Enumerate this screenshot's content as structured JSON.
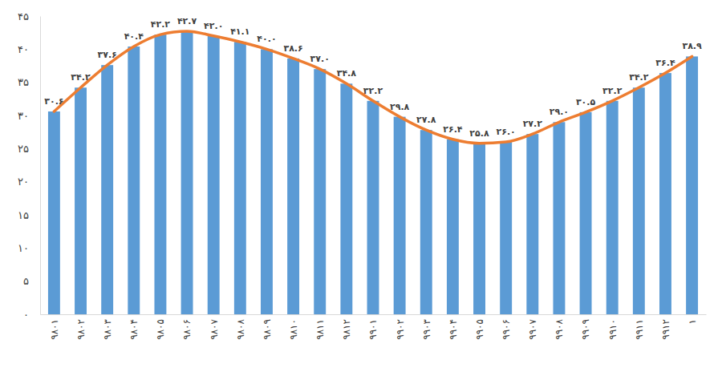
{
  "chart_data": {
    "type": "bar",
    "categories": [
      "۹۸۰۱",
      "۹۸۰۲",
      "۹۸۰۳",
      "۹۸۰۴",
      "۹۸۰۵",
      "۹۸۰۶",
      "۹۸۰۷",
      "۹۸۰۸",
      "۹۸۰۹",
      "۹۸۱۰",
      "۹۸۱۱",
      "۹۸۱۲",
      "۹۹۰۱",
      "۹۹۰۲",
      "۹۹۰۳",
      "۹۹۰۴",
      "۹۹۰۵",
      "۹۹۰۶",
      "۹۹۰۷",
      "۹۹۰۸",
      "۹۹۰۹",
      "۹۹۱۰",
      "۹۹۱۱",
      "۹۹۱۲",
      "۱"
    ],
    "series": [
      {
        "type": "bar",
        "color": "#5b9bd5",
        "values": [
          30.6,
          34.2,
          37.6,
          40.4,
          42.2,
          42.7,
          42.0,
          41.1,
          40.0,
          38.6,
          37.0,
          34.8,
          32.2,
          29.8,
          27.8,
          26.4,
          25.8,
          26.0,
          27.2,
          29.0,
          30.5,
          32.2,
          34.2,
          36.4,
          38.9
        ]
      },
      {
        "type": "line",
        "color": "#ed7d31",
        "values": [
          30.6,
          34.2,
          37.6,
          40.4,
          42.2,
          42.7,
          42.0,
          41.1,
          40.0,
          38.6,
          37.0,
          34.8,
          32.2,
          29.8,
          27.8,
          26.4,
          25.8,
          26.0,
          27.2,
          29.0,
          30.5,
          32.2,
          34.2,
          36.4,
          38.9
        ],
        "value_labels": [
          "۳۰.۶",
          "۳۴.۲",
          "۳۷.۶",
          "۴۰.۴",
          "۴۲.۲",
          "۴۲.۷",
          "۴۲.۰",
          "۴۱.۱",
          "۴۰.۰",
          "۳۸.۶",
          "۳۷.۰",
          "۳۴.۸",
          "۳۲.۲",
          "۲۹.۸",
          "۲۷.۸",
          "۲۶.۴",
          "۲۵.۸",
          "۲۶.۰",
          "۲۷.۲",
          "۲۹.۰",
          "۳۰.۵",
          "۳۲.۲",
          "۳۴.۲",
          "۳۶.۴",
          "۳۸.۹"
        ]
      }
    ],
    "ylim": [
      0,
      45
    ],
    "yticks": [
      {
        "value": 0,
        "label": "۰"
      },
      {
        "value": 5,
        "label": "۵"
      },
      {
        "value": 10,
        "label": "۱۰"
      },
      {
        "value": 15,
        "label": "۱۵"
      },
      {
        "value": 20,
        "label": "۲۰"
      },
      {
        "value": 25,
        "label": "۲۵"
      },
      {
        "value": 30,
        "label": "۳۰"
      },
      {
        "value": 35,
        "label": "۳۵"
      },
      {
        "value": 40,
        "label": "۴۰"
      },
      {
        "value": 45,
        "label": "۴۵"
      }
    ],
    "grid": false,
    "data_labels": true
  }
}
